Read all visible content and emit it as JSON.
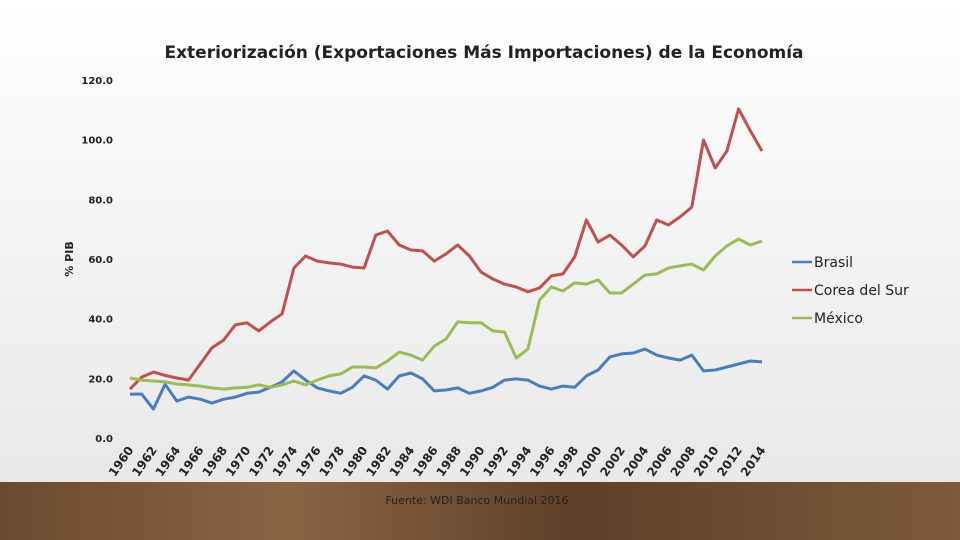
{
  "chart_data": {
    "type": "line",
    "title": "Exteriorización (Exportaciones Más Importaciones) de la Economía",
    "y_label": "% PIB",
    "footnote": "Fuente: WDI Banco Mundial 2016",
    "legend": "right",
    "grid": false,
    "ylim": [
      0,
      120
    ],
    "yticks": [
      {
        "value": 0,
        "label": "0.0"
      },
      {
        "value": 20,
        "label": "20.0"
      },
      {
        "value": 40,
        "label": "40.0"
      },
      {
        "value": 60,
        "label": "60.0"
      },
      {
        "value": 80,
        "label": "80.0"
      },
      {
        "value": 100,
        "label": "100.0"
      },
      {
        "value": 120,
        "label": "120.0"
      }
    ],
    "categories": [
      "1960",
      null,
      "1962",
      null,
      "1964",
      null,
      "1966",
      null,
      "1968",
      null,
      "1970",
      null,
      "1972",
      null,
      "1974",
      null,
      "1976",
      null,
      "1978",
      null,
      "1980",
      null,
      "1982",
      null,
      "1984",
      null,
      "1986",
      null,
      "1988",
      null,
      "1990",
      null,
      "1992",
      null,
      "1994",
      null,
      "1996",
      null,
      "1998",
      null,
      "2000",
      null,
      "2002",
      null,
      "2004",
      null,
      "2006",
      null,
      "2008",
      null,
      "2010",
      null,
      "2012",
      null,
      "2014"
    ],
    "series": [
      {
        "name": "Brasil",
        "color": "#4a7ebb",
        "values": [
          14.7,
          14.7,
          9.7,
          18,
          12.4,
          13.7,
          13,
          11.7,
          13,
          13.7,
          15,
          15.4,
          17,
          18.8,
          22.5,
          19.4,
          16.8,
          15.8,
          15,
          17,
          20.8,
          19.4,
          16.4,
          20.8,
          21.8,
          19.8,
          15.8,
          16.1,
          16.8,
          15,
          15.8,
          17,
          19.4,
          19.8,
          19.4,
          17.4,
          16.4,
          17.4,
          17,
          20.8,
          22.8,
          27.2,
          28.2,
          28.5,
          29.8,
          27.8,
          26.8,
          26.1,
          27.8,
          22.5,
          22.8,
          23.8,
          24.8,
          25.8,
          25.5
        ]
      },
      {
        "name": "Corea del Sur",
        "color": "#c0504d",
        "values": [
          16.4,
          20.4,
          22.1,
          21,
          20.1,
          19.4,
          24.8,
          30.2,
          32.8,
          37.9,
          38.6,
          35.9,
          38.9,
          41.6,
          57,
          61,
          59.3,
          58.7,
          58.3,
          57.3,
          57,
          68,
          69.4,
          64.7,
          63,
          62.7,
          59.3,
          61.7,
          64.7,
          61,
          55.6,
          53.3,
          51.6,
          50.6,
          49,
          50.3,
          54.3,
          55,
          60.7,
          73.1,
          65.7,
          68,
          64.7,
          60.7,
          64.4,
          73.1,
          71.4,
          74.1,
          77.4,
          99.9,
          90.5,
          96.2,
          110.3,
          103,
          96.2
        ]
      },
      {
        "name": "México",
        "color": "#9bbb59",
        "values": [
          20.1,
          19.4,
          19.1,
          18.8,
          18.1,
          17.8,
          17.4,
          16.8,
          16.4,
          16.8,
          17,
          17.8,
          17,
          17.8,
          19.1,
          17.8,
          19.4,
          20.8,
          21.5,
          23.8,
          23.8,
          23.5,
          25.8,
          28.8,
          27.8,
          26.1,
          30.8,
          33.2,
          38.9,
          38.6,
          38.6,
          35.9,
          35.5,
          26.8,
          29.8,
          46.3,
          50.6,
          49.3,
          52,
          51.6,
          53,
          48.6,
          48.6,
          51.6,
          54.6,
          55,
          57,
          57.7,
          58.3,
          56.3,
          61,
          64.4,
          66.7,
          64.7,
          66
        ]
      }
    ]
  }
}
